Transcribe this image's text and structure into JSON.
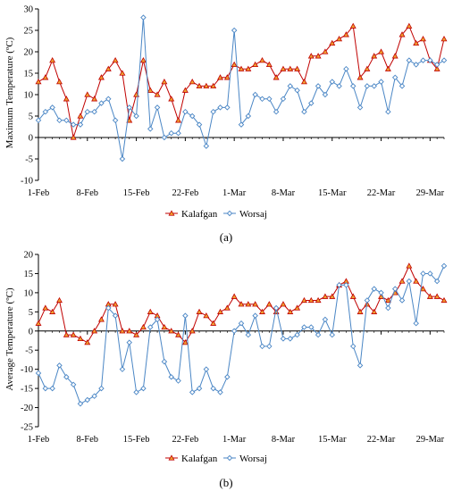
{
  "chart_data": [
    {
      "type": "line",
      "panel": "(a)",
      "ylabel": "Maximum Temperature (ºC)",
      "ylim": [
        -10,
        30
      ],
      "yticks": [
        -10,
        -5,
        0,
        5,
        10,
        15,
        20,
        25,
        30
      ],
      "x_tick_labels": [
        "1-Feb",
        "8-Feb",
        "15-Feb",
        "22-Feb",
        "1-Mar",
        "8-Mar",
        "15-Mar",
        "22-Mar",
        "29-Mar"
      ],
      "x_start": "1-Feb",
      "x_days": 59,
      "grid": false,
      "legend": "bottom-center",
      "series": [
        {
          "name": "Kalafgan",
          "color": "#c00000",
          "marker": "triangle-orange",
          "values": [
            13,
            14,
            18,
            13,
            9,
            0,
            5,
            10,
            9,
            14,
            16,
            18,
            15,
            4,
            10,
            18,
            11,
            10,
            13,
            9,
            4,
            11,
            13,
            12,
            12,
            12,
            14,
            14,
            17,
            16,
            16,
            17,
            18,
            17,
            14,
            16,
            16,
            16,
            13,
            19,
            19,
            20,
            22,
            23,
            24,
            26,
            14,
            16,
            19,
            20,
            16,
            19,
            24,
            26,
            22,
            23,
            18,
            16,
            23
          ]
        },
        {
          "name": "Worsaj",
          "color": "#4a86c5",
          "marker": "diamond",
          "values": [
            4,
            6,
            7,
            4,
            4,
            3,
            3,
            6,
            6,
            8,
            9,
            4,
            -5,
            7,
            5,
            28,
            2,
            7,
            0,
            1,
            1,
            6,
            5,
            3,
            -2,
            6,
            7,
            7,
            25,
            3,
            5,
            10,
            9,
            9,
            6,
            9,
            12,
            11,
            6,
            8,
            12,
            10,
            13,
            12,
            16,
            12,
            7,
            12,
            12,
            13,
            6,
            14,
            12,
            18,
            17,
            18,
            18,
            17,
            18
          ]
        }
      ]
    },
    {
      "type": "line",
      "panel": "(b)",
      "ylabel": "Average Temperature (ºC)",
      "ylim": [
        -25,
        20
      ],
      "yticks": [
        -25,
        -20,
        -15,
        -10,
        -5,
        0,
        5,
        10,
        15,
        20
      ],
      "x_tick_labels": [
        "1-Feb",
        "8-Feb",
        "15-Feb",
        "22-Feb",
        "1-Mar",
        "8-Mar",
        "15-Mar",
        "22-Mar",
        "29-Mar"
      ],
      "x_start": "1-Feb",
      "x_days": 59,
      "grid": false,
      "legend": "bottom-center",
      "series": [
        {
          "name": "Kalafgan",
          "color": "#c00000",
          "marker": "triangle-orange",
          "values": [
            2,
            6,
            5,
            8,
            -1,
            -1,
            -2,
            -3,
            0,
            3,
            7,
            7,
            0,
            0,
            -1,
            1,
            5,
            4,
            1,
            0,
            -1,
            -3,
            0,
            5,
            4,
            2,
            5,
            6,
            9,
            7,
            7,
            7,
            5,
            7,
            5,
            7,
            5,
            6,
            8,
            8,
            8,
            9,
            9,
            12,
            13,
            9,
            5,
            7,
            5,
            9,
            8,
            10,
            13,
            17,
            13,
            11,
            9,
            9,
            8
          ]
        },
        {
          "name": "Worsaj",
          "color": "#4a86c5",
          "marker": "diamond",
          "values": [
            -11,
            -15,
            -15,
            -9,
            -12,
            -14,
            -19,
            -18,
            -17,
            -15,
            6,
            4,
            -10,
            -3,
            -16,
            -15,
            1,
            3,
            -8,
            -12,
            -13,
            4,
            -16,
            -15,
            -10,
            -15,
            -16,
            -12,
            0,
            2,
            -1,
            4,
            -4,
            -4,
            6,
            -2,
            -2,
            -1,
            1,
            1,
            -1,
            3,
            -1,
            12,
            12,
            -4,
            -9,
            8,
            11,
            10,
            6,
            11,
            8,
            13,
            2,
            15,
            15,
            13,
            17
          ]
        }
      ]
    }
  ],
  "figure": {
    "panel_a_caption": "(a)",
    "panel_b_caption": "(b)",
    "legend_labels": [
      "Kalafgan",
      "Worsaj"
    ]
  }
}
